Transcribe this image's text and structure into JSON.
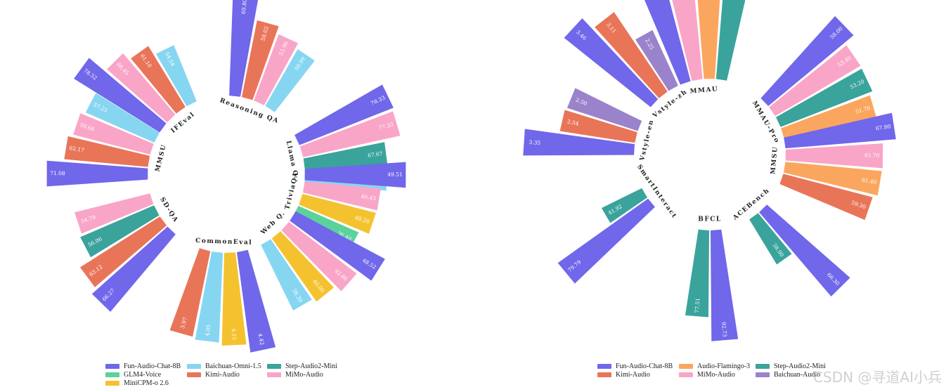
{
  "colors": {
    "Fun-Audio-Chat-8B": "#7067ea",
    "Baichuan-Omni-1.5": "#86d6f1",
    "Step-Audio2-Mini": "#3aa39c",
    "GLM4-Voice": "#5bd29c",
    "Kimi-Audio": "#e97559",
    "MiMo-Audio": "#f9a5c8",
    "MiniCPM-o 2.6": "#f5c22f",
    "Audio-Flamingo-3": "#fba65f",
    "Baichuan-Audio": "#9b83cb"
  },
  "chart_data": [
    {
      "type": "bar",
      "subtype": "radial-grouped-bar",
      "title": "",
      "groups": [
        {
          "name": "IFEval",
          "bars": [
            {
              "model": "Fun-Audio-Chat-8B",
              "value": 78.52
            },
            {
              "model": "MiMo-Audio",
              "value": 66.45
            },
            {
              "model": "Kimi-Audio",
              "value": 61.1
            },
            {
              "model": "Baichuan-Omni-1.5",
              "value": 54.54
            }
          ]
        },
        {
          "name": "Reasoning QA",
          "bars": [
            {
              "model": "Fun-Audio-Chat-8B",
              "value": 69.8
            },
            {
              "model": "Kimi-Audio",
              "value": 58.02
            },
            {
              "model": "MiMo-Audio",
              "value": 53.96
            },
            {
              "model": "Baichuan-Omni-1.5",
              "value": 50.99
            }
          ]
        },
        {
          "name": "Llama Q.",
          "bars": [
            {
              "model": "Fun-Audio-Chat-8B",
              "value": 78.33
            },
            {
              "model": "MiMo-Audio",
              "value": 77.33
            },
            {
              "model": "Step-Audio2-Mini",
              "value": 67.67
            },
            {
              "model": "Baichuan-Omni-1.5",
              "value": 67.33
            }
          ]
        },
        {
          "name": "TriviaQA",
          "bars": [
            {
              "model": "Fun-Audio-Chat-8B",
              "value": 49.51
            },
            {
              "model": "MiMo-Audio",
              "value": 40.43
            },
            {
              "model": "MiniCPM-o 2.6",
              "value": 40.2
            },
            {
              "model": "GLM4-Voice",
              "value": 36.4
            }
          ]
        },
        {
          "name": "Web Q.",
          "bars": [
            {
              "model": "Fun-Audio-Chat-8B",
              "value": 48.52
            },
            {
              "model": "MiMo-Audio",
              "value": 42.86
            },
            {
              "model": "MiniCPM-o 2.6",
              "value": 40.0
            },
            {
              "model": "Baichuan-Omni-1.5",
              "value": 38.39
            }
          ]
        },
        {
          "name": "CommonEval",
          "bars": [
            {
              "model": "Fun-Audio-Chat-8B",
              "value": 4.42
            },
            {
              "model": "MiniCPM-o 2.6",
              "value": 4.15
            },
            {
              "model": "Baichuan-Omni-1.5",
              "value": 4.05
            },
            {
              "model": "Kimi-Audio",
              "value": 3.97
            }
          ]
        },
        {
          "name": "SD-QA",
          "bars": [
            {
              "model": "Fun-Audio-Chat-8B",
              "value": 66.27
            },
            {
              "model": "Kimi-Audio",
              "value": 63.12
            },
            {
              "model": "Step-Audio2-Mini",
              "value": 56.06
            },
            {
              "model": "MiMo-Audio",
              "value": 54.79
            }
          ]
        },
        {
          "name": "MMSU",
          "bars": [
            {
              "model": "Fun-Audio-Chat-8B",
              "value": 71.08
            },
            {
              "model": "Kimi-Audio",
              "value": 62.17
            },
            {
              "model": "MiMo-Audio",
              "value": 59.66
            },
            {
              "model": "Baichuan-Omni-1.5",
              "value": 57.25
            }
          ]
        }
      ],
      "legend": {
        "placement": "bottom",
        "rows": [
          [
            "Fun-Audio-Chat-8B",
            "Baichuan-Omni-1.5",
            "Step-Audio2-Mini"
          ],
          [
            "GLM4-Voice",
            "Kimi-Audio",
            "MiMo-Audio"
          ],
          [
            "MiniCPM-o 2.6"
          ]
        ]
      }
    },
    {
      "type": "bar",
      "subtype": "radial-grouped-bar",
      "title": "",
      "groups": [
        {
          "name": "MMAU",
          "bars": [
            {
              "model": "Fun-Audio-Chat-8B",
              "value": 76.6
            },
            {
              "model": "MiMo-Audio",
              "value": 74.9
            },
            {
              "model": "Audio-Flamingo-3",
              "value": 73.3
            },
            {
              "model": "Step-Audio2-Mini",
              "value": 73.2
            }
          ]
        },
        {
          "name": "MMAU-Pro",
          "bars": [
            {
              "model": "Fun-Audio-Chat-8B",
              "value": 58.0
            },
            {
              "model": "MiMo-Audio",
              "value": 53.4
            },
            {
              "model": "Step-Audio2-Mini",
              "value": 53.2
            },
            {
              "model": "Audio-Flamingo-3",
              "value": 51.7
            }
          ]
        },
        {
          "name": "MMSU",
          "bars": [
            {
              "model": "Fun-Audio-Chat-8B",
              "value": 67.8
            },
            {
              "model": "MiMo-Audio",
              "value": 61.7
            },
            {
              "model": "Audio-Flamingo-3",
              "value": 61.4
            },
            {
              "model": "Kimi-Audio",
              "value": 59.3
            }
          ]
        },
        {
          "name": "ACEBench",
          "bars": [
            {
              "model": "Fun-Audio-Chat-8B",
              "value": 66.3
            },
            {
              "model": "Step-Audio2-Mini",
              "value": 38.9
            }
          ]
        },
        {
          "name": "BFCL",
          "bars": [
            {
              "model": "Fun-Audio-Chat-8B",
              "value": 92.73
            },
            {
              "model": "Step-Audio2-Mini",
              "value": 77.51
            }
          ]
        },
        {
          "name": "SmartInteract",
          "bars": [
            {
              "model": "Fun-Audio-Chat-8B",
              "value": 79.79
            },
            {
              "model": "Step-Audio2-Mini",
              "value": 41.92
            }
          ]
        },
        {
          "name": "Vstyle-en",
          "bars": [
            {
              "model": "Fun-Audio-Chat-8B",
              "value": 3.35
            },
            {
              "model": "Kimi-Audio",
              "value": 2.54
            },
            {
              "model": "Baichuan-Audio",
              "value": 2.5
            }
          ]
        },
        {
          "name": "Vstyle-zh",
          "bars": [
            {
              "model": "Fun-Audio-Chat-8B",
              "value": 3.46
            },
            {
              "model": "Kimi-Audio",
              "value": 3.11
            },
            {
              "model": "Baichuan-Audio",
              "value": 2.25
            }
          ]
        }
      ],
      "legend": {
        "placement": "bottom",
        "rows": [
          [
            "Fun-Audio-Chat-8B",
            "Audio-Flamingo-3",
            "Step-Audio2-Mini"
          ],
          [
            "Kimi-Audio",
            "MiMo-Audio",
            "Baichuan-Audio"
          ]
        ]
      }
    }
  ],
  "watermark": "CSDN @寻道AI小兵"
}
